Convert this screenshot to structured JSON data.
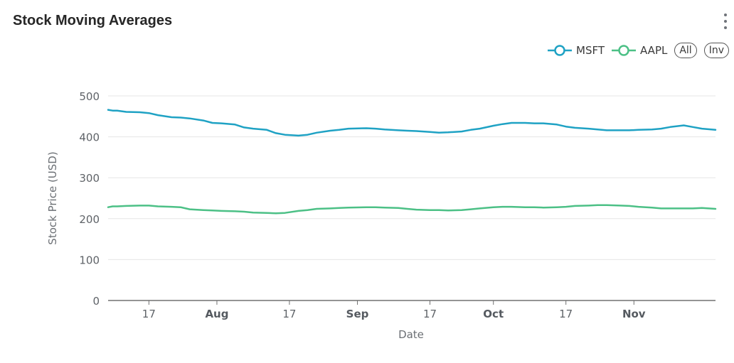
{
  "card": {
    "title": "Stock Moving Averages",
    "menu_icon": "more-vertical-icon"
  },
  "legend": {
    "all_label": "All",
    "inv_label": "Inv"
  },
  "chart_data": {
    "type": "line",
    "title": "Stock Moving Averages",
    "xlabel": "Date",
    "ylabel": "Stock Price (USD)",
    "ylim": [
      0,
      500
    ],
    "yticks": [
      0,
      100,
      200,
      300,
      400,
      500
    ],
    "xlim": [
      "2024-07-08",
      "2024-11-19"
    ],
    "xticks": [
      {
        "date": "2024-07-17",
        "label": "17",
        "major": false
      },
      {
        "date": "2024-08-01",
        "label": "Aug",
        "major": true
      },
      {
        "date": "2024-08-17",
        "label": "17",
        "major": false
      },
      {
        "date": "2024-09-01",
        "label": "Sep",
        "major": true
      },
      {
        "date": "2024-09-17",
        "label": "17",
        "major": false
      },
      {
        "date": "2024-10-01",
        "label": "Oct",
        "major": true
      },
      {
        "date": "2024-10-17",
        "label": "17",
        "major": false
      },
      {
        "date": "2024-11-01",
        "label": "Nov",
        "major": true
      }
    ],
    "grid": true,
    "legend_position": "top-right",
    "x": [
      "2024-07-08",
      "2024-07-09",
      "2024-07-10",
      "2024-07-12",
      "2024-07-15",
      "2024-07-17",
      "2024-07-19",
      "2024-07-22",
      "2024-07-24",
      "2024-07-26",
      "2024-07-29",
      "2024-07-31",
      "2024-08-02",
      "2024-08-05",
      "2024-08-07",
      "2024-08-09",
      "2024-08-12",
      "2024-08-14",
      "2024-08-16",
      "2024-08-19",
      "2024-08-21",
      "2024-08-23",
      "2024-08-26",
      "2024-08-28",
      "2024-08-30",
      "2024-09-03",
      "2024-09-05",
      "2024-09-07",
      "2024-09-10",
      "2024-09-12",
      "2024-09-14",
      "2024-09-17",
      "2024-09-19",
      "2024-09-21",
      "2024-09-24",
      "2024-09-26",
      "2024-09-28",
      "2024-10-01",
      "2024-10-03",
      "2024-10-05",
      "2024-10-08",
      "2024-10-10",
      "2024-10-12",
      "2024-10-15",
      "2024-10-17",
      "2024-10-19",
      "2024-10-22",
      "2024-10-24",
      "2024-10-26",
      "2024-10-29",
      "2024-10-31",
      "2024-11-02",
      "2024-11-05",
      "2024-11-07",
      "2024-11-09",
      "2024-11-12",
      "2024-11-14",
      "2024-11-16",
      "2024-11-19"
    ],
    "series": [
      {
        "name": "MSFT",
        "color": "#1fa2c4",
        "values": [
          466,
          464,
          464,
          461,
          460,
          458,
          453,
          448,
          447,
          445,
          440,
          434,
          433,
          430,
          423,
          420,
          417,
          409,
          405,
          403,
          405,
          410,
          415,
          417,
          420,
          421,
          420,
          418,
          416,
          415,
          414,
          412,
          410,
          411,
          413,
          417,
          420,
          427,
          431,
          434,
          434,
          433,
          433,
          430,
          425,
          422,
          420,
          418,
          416,
          416,
          416,
          417,
          418,
          420,
          424,
          428,
          424,
          420,
          417
        ]
      },
      {
        "name": "AAPL",
        "color": "#4cc086",
        "values": [
          228,
          230,
          230,
          231,
          232,
          232,
          230,
          229,
          228,
          223,
          221,
          220,
          219,
          218,
          217,
          215,
          214,
          213,
          214,
          219,
          221,
          224,
          225,
          226,
          227,
          228,
          228,
          227,
          226,
          224,
          222,
          221,
          221,
          220,
          221,
          223,
          225,
          228,
          229,
          229,
          228,
          228,
          227,
          228,
          229,
          231,
          232,
          233,
          233,
          232,
          231,
          229,
          227,
          225,
          225,
          225,
          225,
          226,
          224
        ]
      }
    ]
  }
}
